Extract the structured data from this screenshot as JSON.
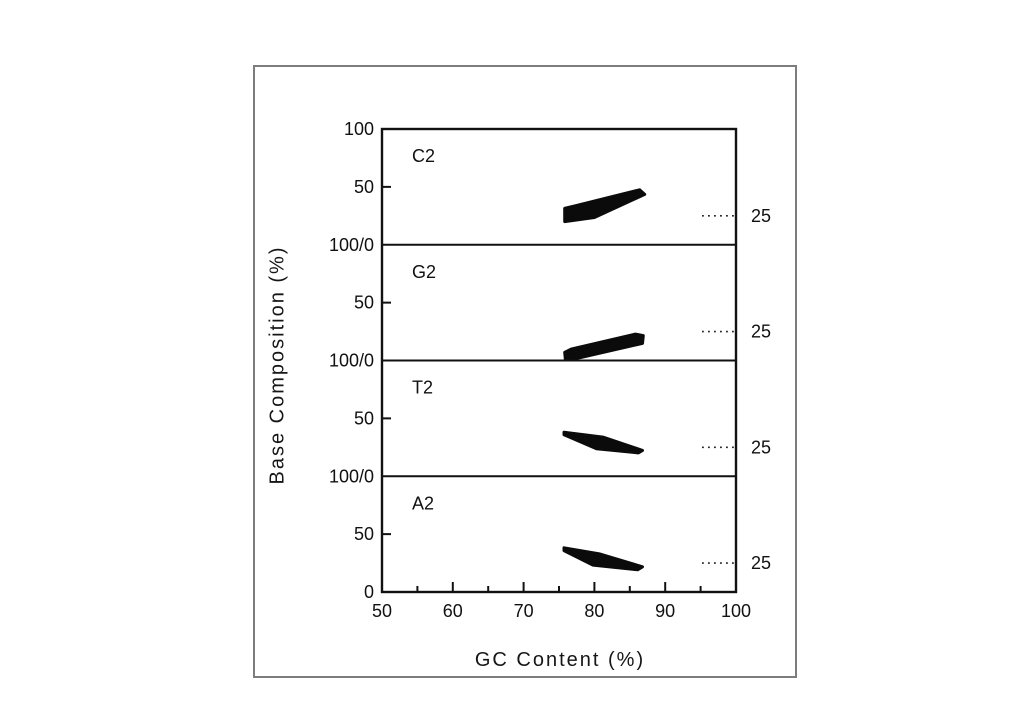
{
  "chart_data": {
    "type": "scatter",
    "title": "",
    "xlabel": "GC Content (%)",
    "ylabel": "Base Composition (%)",
    "xlim": [
      50,
      100
    ],
    "x_ticks": [
      50,
      60,
      70,
      80,
      90,
      100
    ],
    "x_minor_ticks": [
      55,
      65,
      75,
      85,
      95
    ],
    "panel_ylim": [
      0,
      100
    ],
    "grid": false,
    "legend": "none",
    "y_tick_labels": {
      "top": "100",
      "mid": "50",
      "boundary": "100/0",
      "bottom": "0"
    },
    "reference_line": {
      "y": 25,
      "label": "25",
      "x_start": 95.2,
      "x_end": 100,
      "style": "dotted"
    },
    "panels": [
      {
        "label": "C2",
        "trend": "rising",
        "gc_range": [
          75.8,
          87.1
        ],
        "comp_range": [
          20,
          47.5
        ],
        "cluster_outline": [
          [
            75.8,
            20
          ],
          [
            75.8,
            31.5
          ],
          [
            77.5,
            34
          ],
          [
            86.4,
            47.5
          ],
          [
            87.1,
            43.5
          ],
          [
            80,
            23.5
          ]
        ]
      },
      {
        "label": "G2",
        "trend": "rising",
        "gc_range": [
          75.8,
          86.9
        ],
        "comp_range": [
          0.5,
          22.8
        ],
        "cluster_outline": [
          [
            75.9,
            0.5
          ],
          [
            75.8,
            7
          ],
          [
            76.8,
            10
          ],
          [
            85.8,
            22.8
          ],
          [
            86.9,
            21.5
          ],
          [
            86.8,
            14.8
          ],
          [
            78,
            2.5
          ]
        ]
      },
      {
        "label": "T2",
        "trend": "falling",
        "gc_range": [
          75.7,
          86.8
        ],
        "comp_range": [
          20.2,
          38
        ],
        "cluster_outline": [
          [
            75.7,
            38
          ],
          [
            81.2,
            33.8
          ],
          [
            86.8,
            22.3
          ],
          [
            86.2,
            20.2
          ],
          [
            80.3,
            23.8
          ],
          [
            75.7,
            35.8
          ]
        ]
      },
      {
        "label": "A2",
        "trend": "falling",
        "gc_range": [
          75.7,
          86.8
        ],
        "comp_range": [
          19.2,
          38.2
        ],
        "cluster_outline": [
          [
            75.7,
            38.2
          ],
          [
            80.8,
            32.8
          ],
          [
            86.8,
            21.8
          ],
          [
            86.1,
            19.2
          ],
          [
            79.8,
            23.2
          ],
          [
            75.7,
            35.8
          ]
        ]
      }
    ],
    "colors": {
      "data": "#0b0b0b",
      "axis": "#111111",
      "frame": "#7d7d7d",
      "background": "#ffffff"
    }
  }
}
